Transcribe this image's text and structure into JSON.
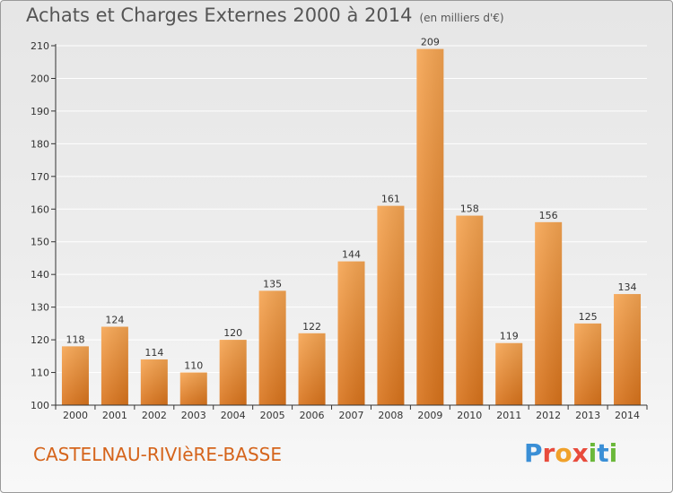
{
  "title": "Achats et Charges Externes 2000 à 2014",
  "unit": "(en milliers d'€)",
  "town": "CASTELNAU-RIVIèRE-BASSE",
  "logo": {
    "letters": [
      "P",
      "r",
      "o",
      "x",
      "i",
      "t",
      "i"
    ],
    "colors": [
      "#3a8fd6",
      "#e84b3c",
      "#f0a12a",
      "#e84b3c",
      "#6bb83a",
      "#3a8fd6",
      "#6bb83a"
    ]
  },
  "colors": {
    "bar_top": "#f6a552",
    "bar_bottom": "#d9731b",
    "axis": "#333333",
    "grid": "#ffffff"
  },
  "chart_data": {
    "type": "bar",
    "title": "Achats et Charges Externes 2000 à 2014",
    "categories": [
      "2000",
      "2001",
      "2002",
      "2003",
      "2004",
      "2005",
      "2006",
      "2007",
      "2008",
      "2009",
      "2010",
      "2011",
      "2012",
      "2013",
      "2014"
    ],
    "values": [
      118,
      124,
      114,
      110,
      120,
      135,
      122,
      144,
      161,
      209,
      158,
      119,
      156,
      125,
      134
    ],
    "ylim": [
      100,
      210
    ],
    "yticks": [
      100,
      110,
      120,
      130,
      140,
      150,
      160,
      170,
      180,
      190,
      200,
      210
    ],
    "grid": true,
    "xlabel": "",
    "ylabel": ""
  }
}
